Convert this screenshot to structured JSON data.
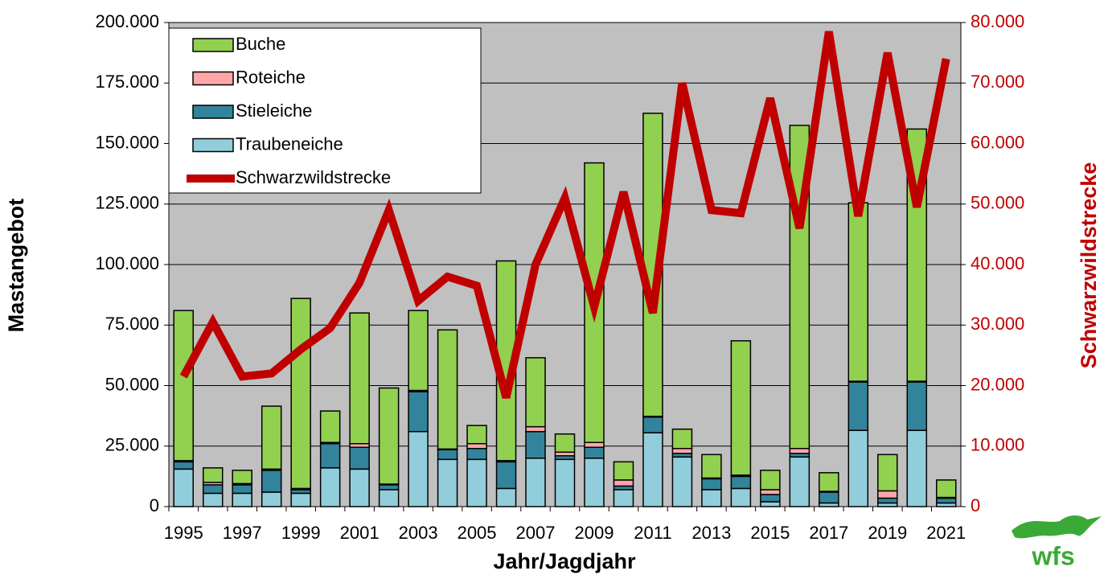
{
  "chart_data": {
    "type": "bar",
    "stacked": true,
    "x_label": "Jahr/Jagdjahr",
    "y_label": "Mastangebot",
    "y2_label": "Schwarzwildstrecke",
    "categories": [
      "1995",
      null,
      "1997",
      null,
      "1999",
      null,
      "2001",
      null,
      "2003",
      null,
      "2005",
      null,
      "2007",
      null,
      "2009",
      null,
      "2011",
      null,
      "2013",
      null,
      "2015",
      null,
      "2017",
      null,
      "2019",
      null,
      "2021"
    ],
    "series": [
      {
        "name": "Traubeneiche",
        "color": "#92cddc",
        "values": [
          15500,
          5500,
          5500,
          6000,
          5500,
          16000,
          15500,
          7000,
          31000,
          19500,
          19500,
          7500,
          20000,
          19500,
          20000,
          7000,
          30500,
          20500,
          7000,
          7500,
          2000,
          20500,
          1500,
          31500,
          1500,
          31500,
          1500
        ]
      },
      {
        "name": "Stieleiche",
        "color": "#31849b",
        "values": [
          3000,
          3500,
          3500,
          9000,
          1500,
          10000,
          9000,
          2000,
          16500,
          4000,
          4500,
          11000,
          11000,
          1500,
          4500,
          1500,
          6500,
          1500,
          4500,
          5000,
          3000,
          1500,
          4500,
          20000,
          2000,
          20000,
          2000
        ]
      },
      {
        "name": "Roteiche",
        "color": "#ffa7a7",
        "values": [
          500,
          1000,
          500,
          500,
          500,
          500,
          1500,
          300,
          500,
          300,
          2000,
          500,
          2000,
          1500,
          2000,
          2500,
          300,
          2000,
          300,
          500,
          2000,
          2000,
          300,
          300,
          3000,
          300,
          300
        ]
      },
      {
        "name": "Buche",
        "color": "#92d050",
        "values": [
          62000,
          6000,
          5500,
          26000,
          78500,
          13000,
          54000,
          39700,
          33000,
          49200,
          7500,
          82500,
          28500,
          7500,
          115500,
          7500,
          125200,
          8000,
          9700,
          55500,
          8000,
          133500,
          7700,
          73700,
          15000,
          104200,
          7200
        ]
      },
      {
        "name": "Schwarzwildstrecke",
        "color": "#c00000",
        "type": "line",
        "axis": "y2",
        "values": [
          21500,
          30500,
          21500,
          22000,
          26000,
          29500,
          37000,
          49000,
          34000,
          38000,
          36500,
          18000,
          40000,
          51000,
          33000,
          52000,
          32000,
          70000,
          49000,
          48500,
          67500,
          46000,
          78500,
          48000,
          75000,
          49500,
          74000
        ]
      }
    ],
    "ylim": [
      0,
      200000
    ],
    "yticks": [
      0,
      {
        "value": 25000,
        "label": "25.000"
      },
      {
        "value": 50000,
        "label": "50.000"
      },
      {
        "value": 75000,
        "label": "75.000"
      },
      {
        "value": 100000,
        "label": "100.000"
      },
      {
        "value": 125000,
        "label": "125.000"
      },
      {
        "value": 150000,
        "label": "150.000"
      },
      {
        "value": 175000,
        "label": "175.000"
      },
      {
        "value": 200000,
        "label": "200.000"
      }
    ],
    "y2lim": [
      0,
      80000
    ],
    "y2ticks": [
      0,
      {
        "value": 10000,
        "label": "10.000"
      },
      {
        "value": 20000,
        "label": "20.000"
      },
      {
        "value": 30000,
        "label": "30.000"
      },
      {
        "value": 40000,
        "label": "40.000"
      },
      {
        "value": 50000,
        "label": "50.000"
      },
      {
        "value": 60000,
        "label": "60.000"
      },
      {
        "value": 70000,
        "label": "70.000"
      },
      {
        "value": 80000,
        "label": "80.000"
      }
    ],
    "grid": true,
    "legend": "top-left",
    "background": "#c0c0c0"
  },
  "logo": "wfs"
}
